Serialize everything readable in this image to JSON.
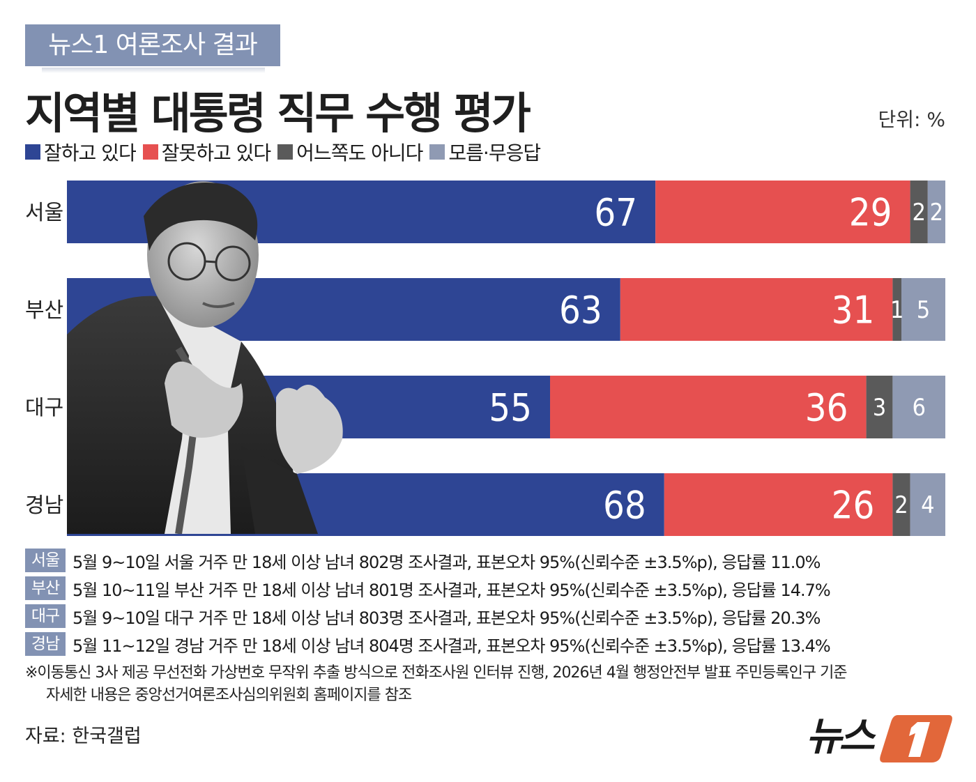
{
  "header": {
    "tag": "뉴스1 여론조사 결과",
    "title": "지역별 대통령 직무 수행 평가",
    "unit": "단위: %"
  },
  "legend": [
    {
      "label": "잘하고 있다",
      "color": "#2e4594"
    },
    {
      "label": "잘못하고 있다",
      "color": "#e65050"
    },
    {
      "label": "어느쪽도 아니다",
      "color": "#5a5a5a"
    },
    {
      "label": "모름·무응답",
      "color": "#8f9ab3"
    }
  ],
  "chart_data": {
    "type": "bar",
    "orientation": "horizontal-stacked",
    "categories": [
      "서울",
      "부산",
      "대구",
      "경남"
    ],
    "series": [
      {
        "name": "잘하고 있다",
        "color": "#2e4594",
        "values": [
          67,
          63,
          55,
          68
        ]
      },
      {
        "name": "잘못하고 있다",
        "color": "#e65050",
        "values": [
          29,
          31,
          36,
          26
        ]
      },
      {
        "name": "어느쪽도 아니다",
        "color": "#5a5a5a",
        "values": [
          2,
          1,
          3,
          2
        ]
      },
      {
        "name": "모름·무응답",
        "color": "#8f9ab3",
        "values": [
          2,
          5,
          6,
          4
        ]
      }
    ],
    "unit": "%"
  },
  "notes": [
    {
      "region": "서울",
      "text": "5월 9~10일 서울 거주 만 18세 이상 남녀 802명 조사결과, 표본오차 95%(신뢰수준 ±3.5%p), 응답률 11.0%"
    },
    {
      "region": "부산",
      "text": "5월 10~11일 부산 거주 만 18세 이상 남녀 801명 조사결과, 표본오차 95%(신뢰수준 ±3.5%p), 응답률 14.7%"
    },
    {
      "region": "대구",
      "text": "5월 9~10일 대구 거주 만 18세 이상 남녀 803명 조사결과, 표본오차 95%(신뢰수준 ±3.5%p), 응답률 20.3%"
    },
    {
      "region": "경남",
      "text": "5월 11~12일 경남 거주 만 18세 이상 남녀 804명 조사결과, 표본오차 95%(신뢰수준 ±3.5%p), 응답률 13.4%"
    }
  ],
  "footnote": {
    "line1": "※이동통신 3사 제공 무선전화 가상번호 무작위 추출 방식으로 전화조사원 인터뷰 진행, 2026년 4월 행정안전부 발표 주민등록인구 기준",
    "line2": "자세한 내용은 중앙선거여론조사심의위원회 홈페이지를 참조"
  },
  "source": "자료: 한국갤럽",
  "logo_text": "뉴스"
}
